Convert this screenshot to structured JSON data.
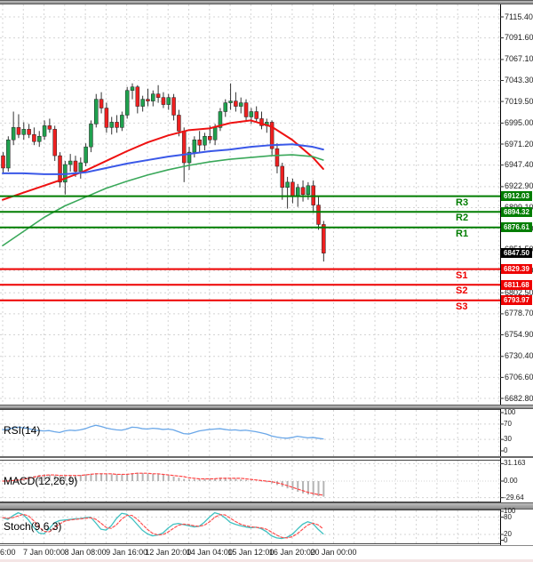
{
  "colors": {
    "background": "#ffffff",
    "grid": "#d4d4d4",
    "candle_up": "#1fa14e",
    "candle_down": "#ee2020",
    "wick": "#333333",
    "resistance_line": "#007d00",
    "support_line": "#ee0000",
    "current_price_bg": "#000000",
    "rsi_line": "#6aa7e8",
    "macd_histogram": "#b4b4b4",
    "macd_signal": "#ff4545",
    "stoch_k": "#3fc1c1",
    "stoch_d": "#ff5050",
    "separator": "#9a9a9a",
    "axis_text": "#1c1c1c"
  },
  "chart_data": [
    {
      "type": "candlestick",
      "timeframe": "4h",
      "timeframe_labels": [
        "6:00",
        "7 Jan 00:00",
        "8 Jan 08:00",
        "9 Jan 16:00",
        "12 Jan 20:00",
        "14 Jan 04:00",
        "15 Jan 12:00",
        "16 Jan 20:00",
        "20 Jan 00:00"
      ],
      "label_candle_idx": [
        0,
        8,
        16,
        24,
        32,
        40,
        48,
        56,
        64
      ],
      "y_axis": {
        "ticks": [
          {
            "label": "7115.40",
            "value": 7115.4
          },
          {
            "label": "7091.60",
            "value": 7091.6
          },
          {
            "label": "7067.10",
            "value": 7067.1
          },
          {
            "label": "7043.30",
            "value": 7043.3
          },
          {
            "label": "7019.50",
            "value": 7019.5
          },
          {
            "label": "6995.00",
            "value": 6995.0
          },
          {
            "label": "6971.20",
            "value": 6971.2
          },
          {
            "label": "6947.40",
            "value": 6947.4
          },
          {
            "label": "6922.90",
            "value": 6922.9
          },
          {
            "label": "6899.10",
            "value": 6899.1
          },
          {
            "label": "6875.30",
            "value": 6875.3
          },
          {
            "label": "6851.50",
            "value": 6851.5
          },
          {
            "label": "6827.70",
            "value": 6827.7
          },
          {
            "label": "6802.50",
            "value": 6802.5
          },
          {
            "label": "6778.70",
            "value": 6778.7
          },
          {
            "label": "6754.90",
            "value": 6754.9
          },
          {
            "label": "6730.40",
            "value": 6730.4
          },
          {
            "label": "6706.60",
            "value": 6706.6
          },
          {
            "label": "6682.80",
            "value": 6682.8
          }
        ]
      },
      "levels": {
        "resistance": [
          {
            "name": "R3",
            "label": "6912.03",
            "value": 6912.03
          },
          {
            "name": "R2",
            "label": "6894.32",
            "value": 6894.32
          },
          {
            "name": "R1",
            "label": "6876.61",
            "value": 6876.61
          }
        ],
        "support": [
          {
            "name": "S1",
            "label": "6829.39",
            "value": 6829.39
          },
          {
            "name": "S2",
            "label": "6811.68",
            "value": 6811.68
          },
          {
            "name": "S3",
            "label": "6793.97",
            "value": 6793.97
          }
        ],
        "current_price": {
          "label": "6847.50",
          "value": 6847.5
        }
      },
      "candles": [
        [
          6958,
          6962,
          6938,
          6944
        ],
        [
          6944,
          6980,
          6940,
          6976
        ],
        [
          6976,
          7008,
          6970,
          6990
        ],
        [
          6990,
          7005,
          6978,
          6982
        ],
        [
          6982,
          6996,
          6976,
          6988
        ],
        [
          6988,
          6994,
          6978,
          6982
        ],
        [
          6982,
          6990,
          6970,
          6974
        ],
        [
          6974,
          6986,
          6968,
          6980
        ],
        [
          6980,
          6998,
          6976,
          6992
        ],
        [
          6992,
          7000,
          6984,
          6988
        ],
        [
          6988,
          6992,
          6952,
          6958
        ],
        [
          6958,
          6962,
          6922,
          6928
        ],
        [
          6928,
          6952,
          6914,
          6948
        ],
        [
          6948,
          6960,
          6940,
          6952
        ],
        [
          6952,
          6958,
          6934,
          6940
        ],
        [
          6940,
          6956,
          6932,
          6950
        ],
        [
          6950,
          6972,
          6946,
          6968
        ],
        [
          6968,
          6998,
          6962,
          6994
        ],
        [
          6994,
          7028,
          6990,
          7022
        ],
        [
          7022,
          7030,
          7006,
          7012
        ],
        [
          7012,
          7018,
          6984,
          6990
        ],
        [
          6990,
          7002,
          6982,
          6996
        ],
        [
          6996,
          7004,
          6984,
          6990
        ],
        [
          6990,
          7008,
          6986,
          7004
        ],
        [
          7004,
          7036,
          7000,
          7032
        ],
        [
          7032,
          7040,
          7022,
          7036
        ],
        [
          7036,
          7038,
          7006,
          7014
        ],
        [
          7014,
          7026,
          7008,
          7022
        ],
        [
          7022,
          7034,
          7014,
          7020
        ],
        [
          7020,
          7032,
          7014,
          7028
        ],
        [
          7028,
          7038,
          7018,
          7024
        ],
        [
          7024,
          7030,
          7012,
          7016
        ],
        [
          7016,
          7028,
          7010,
          7024
        ],
        [
          7024,
          7028,
          6998,
          7004
        ],
        [
          7004,
          7010,
          6980,
          6986
        ],
        [
          6986,
          6990,
          6928,
          6950
        ],
        [
          6950,
          6968,
          6942,
          6962
        ],
        [
          6962,
          6980,
          6956,
          6976
        ],
        [
          6976,
          6986,
          6962,
          6970
        ],
        [
          6970,
          6984,
          6964,
          6980
        ],
        [
          6980,
          6992,
          6972,
          6976
        ],
        [
          6976,
          6994,
          6970,
          6990
        ],
        [
          6990,
          7012,
          6986,
          7008
        ],
        [
          7008,
          7022,
          7002,
          7018
        ],
        [
          7018,
          7040,
          7010,
          7020
        ],
        [
          7020,
          7030,
          7008,
          7014
        ],
        [
          7014,
          7024,
          7006,
          7018
        ],
        [
          7018,
          7022,
          6998,
          7002
        ],
        [
          7002,
          7012,
          6994,
          7008
        ],
        [
          7008,
          7014,
          6996,
          7000
        ],
        [
          7000,
          7008,
          6988,
          6992
        ],
        [
          6992,
          7000,
          6984,
          6996
        ],
        [
          6996,
          6998,
          6958,
          6966
        ],
        [
          6966,
          6972,
          6938,
          6946
        ],
        [
          6946,
          6950,
          6908,
          6922
        ],
        [
          6922,
          6934,
          6898,
          6928
        ],
        [
          6928,
          6932,
          6904,
          6912
        ],
        [
          6912,
          6926,
          6900,
          6922
        ],
        [
          6922,
          6930,
          6906,
          6914
        ],
        [
          6914,
          6928,
          6908,
          6924
        ],
        [
          6924,
          6930,
          6893,
          6902
        ],
        [
          6902,
          6912,
          6874,
          6880
        ],
        [
          6880,
          6884,
          6838,
          6847.5
        ]
      ],
      "moving_averages": [
        {
          "name": "ma-fast-red",
          "color": "#ee1111",
          "width": 2,
          "points": [
            6908,
            6916,
            6924,
            6932,
            6941,
            6952,
            6963,
            6973,
            6981,
            6987,
            6989,
            6995,
            6998,
            6991,
            6976,
            6956,
            6943
          ]
        },
        {
          "name": "ma-mid-blue",
          "color": "#3a58e8",
          "width": 2,
          "points": [
            6938,
            6938,
            6937,
            6937,
            6939,
            6944,
            6949,
            6953,
            6957,
            6960,
            6963,
            6965,
            6968,
            6970,
            6971,
            6968,
            6965
          ]
        },
        {
          "name": "ma-slow-green",
          "color": "#3aa85a",
          "width": 1.6,
          "points": [
            6856,
            6872,
            6888,
            6901,
            6911,
            6921,
            6929,
            6936,
            6942,
            6947,
            6951,
            6954,
            6956,
            6958,
            6959,
            6957,
            6953
          ]
        }
      ]
    },
    {
      "type": "line",
      "name": "RSI(14)",
      "y_ticks": [
        {
          "label": "100",
          "value": 100
        },
        {
          "label": "70",
          "value": 70
        },
        {
          "label": "30",
          "value": 30
        },
        {
          "label": "0",
          "value": 0
        }
      ],
      "values": [
        55,
        57,
        60,
        62,
        60,
        58,
        55,
        53,
        52,
        53,
        50,
        48,
        52,
        54,
        53,
        55,
        58,
        63,
        67,
        64,
        60,
        57,
        55,
        54,
        57,
        62,
        61,
        58,
        57,
        59,
        58,
        56,
        57,
        55,
        50,
        45,
        44,
        48,
        52,
        54,
        56,
        57,
        58,
        56,
        54,
        55,
        53,
        54,
        52,
        50,
        47,
        44,
        39,
        36,
        34,
        33,
        35,
        38,
        36,
        34,
        35,
        33,
        31.16
      ]
    },
    {
      "type": "histogram_line",
      "name": "MACD(12,26,9)",
      "y_ticks": [
        {
          "label": "31.163",
          "value": 31.163
        },
        {
          "label": "0.00",
          "value": 0
        },
        {
          "label": "-29.64",
          "value": -29.64
        }
      ],
      "histogram": [
        0,
        0,
        0,
        2,
        4,
        6,
        9,
        11,
        12,
        11,
        10,
        9,
        9,
        10,
        10,
        11,
        12,
        13,
        14,
        14,
        13,
        12,
        12,
        12,
        13,
        14,
        15,
        14,
        13,
        13,
        12,
        11,
        10,
        8,
        6,
        4,
        3,
        3,
        3,
        4,
        5,
        5,
        6,
        6,
        5,
        4,
        3,
        2,
        1,
        0,
        -1,
        -2,
        -4,
        -7,
        -10,
        -13,
        -16,
        -19,
        -22,
        -24,
        -26,
        -27,
        -28
      ],
      "signal": [
        0,
        0,
        1,
        2,
        3,
        5,
        7,
        9,
        10,
        11,
        11,
        10,
        10,
        10,
        10,
        10,
        11,
        12,
        13,
        13,
        13,
        13,
        12,
        12,
        12,
        13,
        14,
        14,
        14,
        13,
        13,
        12,
        11,
        10,
        9,
        8,
        6,
        5,
        4,
        4,
        4,
        4,
        5,
        5,
        5,
        5,
        5,
        4,
        3,
        2,
        1,
        0,
        -1,
        -3,
        -5,
        -8,
        -11,
        -14,
        -17,
        -20,
        -22,
        -24,
        -25
      ]
    },
    {
      "type": "line",
      "name": "Stoch(9,6,3)",
      "y_ticks": [
        {
          "label": "100",
          "value": 100
        },
        {
          "label": "80",
          "value": 80
        },
        {
          "label": "20",
          "value": 20
        },
        {
          "label": "0",
          "value": 0
        }
      ],
      "k": [
        78,
        72,
        85,
        95,
        88,
        70,
        45,
        25,
        22,
        40,
        60,
        68,
        70,
        72,
        74,
        75,
        78,
        80,
        60,
        38,
        35,
        50,
        75,
        93,
        90,
        75,
        55,
        35,
        22,
        15,
        18,
        25,
        42,
        55,
        58,
        54,
        50,
        46,
        48,
        62,
        80,
        95,
        90,
        78,
        62,
        55,
        50,
        46,
        43,
        45,
        40,
        30,
        15,
        8,
        6,
        10,
        20,
        38,
        55,
        64,
        58,
        38,
        22
      ],
      "d_period": 3
    }
  ]
}
